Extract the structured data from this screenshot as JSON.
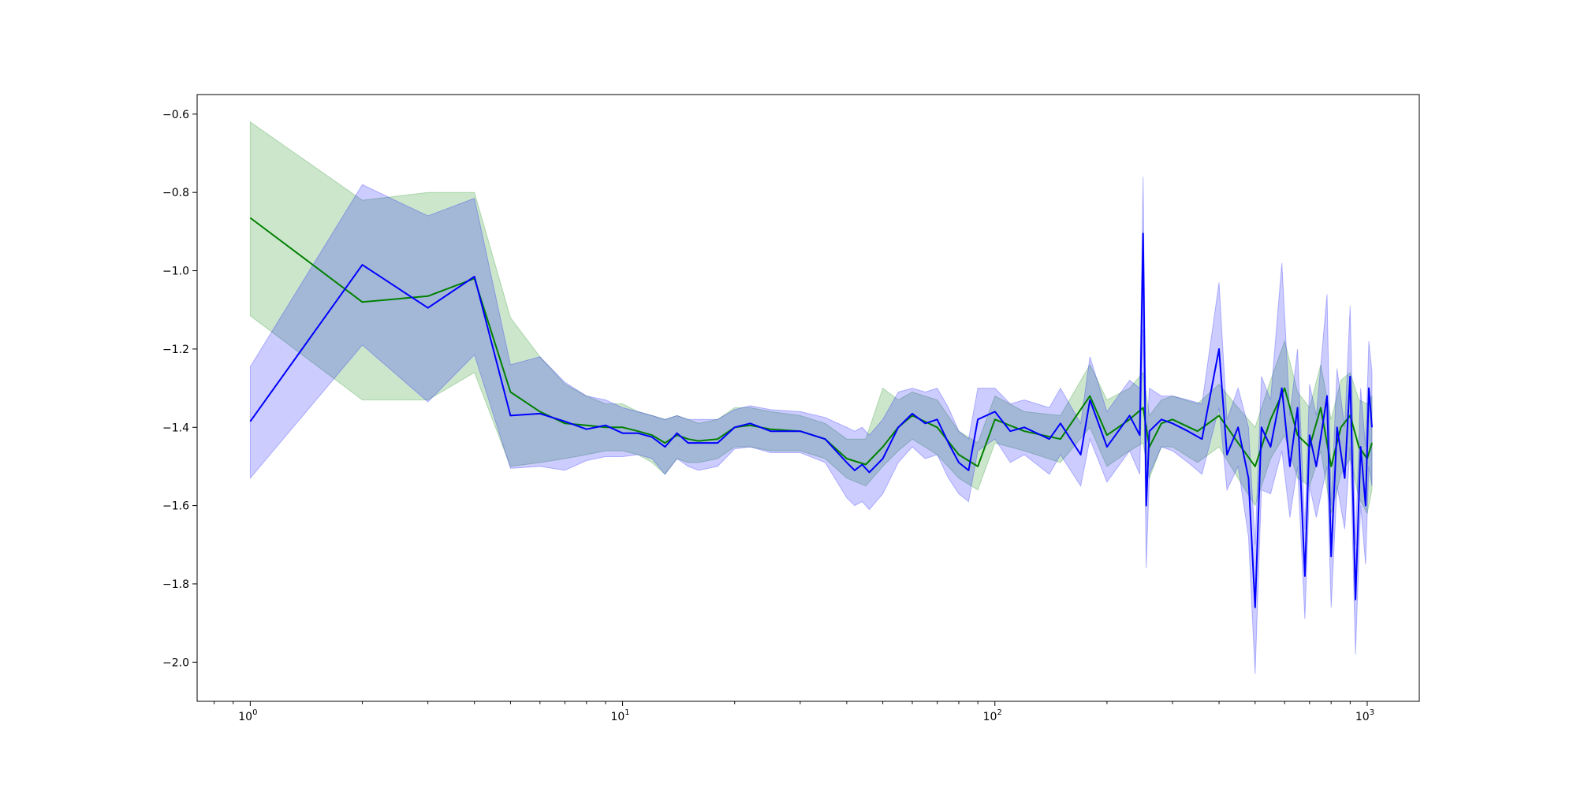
{
  "chart_data": {
    "type": "line",
    "title": "",
    "xlabel": "",
    "ylabel": "",
    "xscale": "log",
    "xlim": [
      0.72,
      1380
    ],
    "ylim": [
      -2.1,
      -0.55
    ],
    "grid": false,
    "legend": "none",
    "x_ticks": [
      {
        "base": "10",
        "exp": "0",
        "value": 1
      },
      {
        "base": "10",
        "exp": "1",
        "value": 10
      },
      {
        "base": "10",
        "exp": "2",
        "value": 100
      },
      {
        "base": "10",
        "exp": "3",
        "value": 1000
      }
    ],
    "y_ticks": [
      {
        "label": "−0.6",
        "value": -0.6
      },
      {
        "label": "−0.8",
        "value": -0.8
      },
      {
        "label": "−1.0",
        "value": -1.0
      },
      {
        "label": "−1.2",
        "value": -1.2
      },
      {
        "label": "−1.4",
        "value": -1.4
      },
      {
        "label": "−1.6",
        "value": -1.6
      },
      {
        "label": "−1.8",
        "value": -1.8
      },
      {
        "label": "−2.0",
        "value": -2.0
      }
    ],
    "series": [
      {
        "color": "#008000",
        "band_color": "#008000",
        "band_opacity": 0.2,
        "x": [
          1,
          2,
          3,
          4,
          5,
          6,
          7,
          8,
          9,
          10,
          11,
          12,
          13,
          14,
          15,
          16,
          18,
          20,
          22,
          25,
          30,
          35,
          40,
          45,
          50,
          55,
          60,
          70,
          80,
          90,
          100,
          120,
          150,
          180,
          200,
          230,
          250,
          260,
          280,
          300,
          350,
          400,
          450,
          500,
          550,
          600,
          650,
          700,
          750,
          800,
          850,
          900,
          950,
          1000,
          1030
        ],
        "y": [
          -0.865,
          -1.08,
          -1.065,
          -1.02,
          -1.31,
          -1.36,
          -1.39,
          -1.395,
          -1.4,
          -1.4,
          -1.41,
          -1.42,
          -1.44,
          -1.42,
          -1.43,
          -1.435,
          -1.43,
          -1.4,
          -1.395,
          -1.405,
          -1.41,
          -1.43,
          -1.48,
          -1.495,
          -1.45,
          -1.4,
          -1.37,
          -1.4,
          -1.47,
          -1.5,
          -1.38,
          -1.41,
          -1.43,
          -1.32,
          -1.42,
          -1.38,
          -1.35,
          -1.45,
          -1.39,
          -1.38,
          -1.41,
          -1.37,
          -1.44,
          -1.5,
          -1.38,
          -1.3,
          -1.42,
          -1.45,
          -1.35,
          -1.5,
          -1.4,
          -1.37,
          -1.45,
          -1.48,
          -1.44
        ],
        "lower": [
          -1.115,
          -1.33,
          -1.33,
          -1.26,
          -1.5,
          -1.49,
          -1.48,
          -1.47,
          -1.46,
          -1.46,
          -1.47,
          -1.49,
          -1.52,
          -1.48,
          -1.49,
          -1.49,
          -1.48,
          -1.45,
          -1.45,
          -1.46,
          -1.46,
          -1.48,
          -1.53,
          -1.55,
          -1.5,
          -1.46,
          -1.43,
          -1.47,
          -1.53,
          -1.56,
          -1.44,
          -1.46,
          -1.49,
          -1.4,
          -1.5,
          -1.46,
          -1.44,
          -1.53,
          -1.45,
          -1.45,
          -1.49,
          -1.45,
          -1.53,
          -1.6,
          -1.48,
          -1.42,
          -1.53,
          -1.55,
          -1.46,
          -1.62,
          -1.52,
          -1.48,
          -1.58,
          -1.62,
          -1.56
        ],
        "upper": [
          -0.62,
          -0.82,
          -0.8,
          -0.8,
          -1.12,
          -1.22,
          -1.29,
          -1.32,
          -1.34,
          -1.34,
          -1.36,
          -1.37,
          -1.38,
          -1.37,
          -1.38,
          -1.39,
          -1.38,
          -1.35,
          -1.35,
          -1.36,
          -1.37,
          -1.39,
          -1.43,
          -1.43,
          -1.3,
          -1.33,
          -1.31,
          -1.33,
          -1.41,
          -1.44,
          -1.32,
          -1.36,
          -1.37,
          -1.24,
          -1.33,
          -1.3,
          -1.26,
          -1.37,
          -1.33,
          -1.32,
          -1.34,
          -1.29,
          -1.35,
          -1.4,
          -1.28,
          -1.18,
          -1.31,
          -1.35,
          -1.24,
          -1.38,
          -1.28,
          -1.26,
          -1.33,
          -1.34,
          -1.32
        ]
      },
      {
        "color": "#0000ff",
        "band_color": "#0000ff",
        "band_opacity": 0.2,
        "x": [
          1,
          2,
          3,
          4,
          5,
          6,
          7,
          8,
          9,
          10,
          11,
          12,
          13,
          14,
          15,
          16,
          18,
          20,
          22,
          25,
          30,
          35,
          40,
          42,
          44,
          46,
          50,
          55,
          60,
          65,
          70,
          75,
          80,
          85,
          90,
          100,
          110,
          120,
          140,
          150,
          170,
          180,
          200,
          230,
          245,
          250,
          255,
          260,
          280,
          300,
          330,
          360,
          400,
          420,
          450,
          480,
          500,
          520,
          550,
          590,
          620,
          650,
          680,
          700,
          730,
          780,
          800,
          830,
          870,
          900,
          930,
          960,
          990,
          1010,
          1030
        ],
        "y": [
          -1.385,
          -0.985,
          -1.095,
          -1.015,
          -1.37,
          -1.365,
          -1.385,
          -1.405,
          -1.395,
          -1.415,
          -1.415,
          -1.425,
          -1.45,
          -1.415,
          -1.44,
          -1.44,
          -1.44,
          -1.4,
          -1.39,
          -1.41,
          -1.41,
          -1.43,
          -1.49,
          -1.51,
          -1.495,
          -1.515,
          -1.48,
          -1.4,
          -1.365,
          -1.39,
          -1.38,
          -1.44,
          -1.49,
          -1.51,
          -1.38,
          -1.36,
          -1.41,
          -1.4,
          -1.43,
          -1.39,
          -1.47,
          -1.33,
          -1.45,
          -1.37,
          -1.42,
          -0.905,
          -1.6,
          -1.41,
          -1.38,
          -1.39,
          -1.41,
          -1.43,
          -1.2,
          -1.47,
          -1.4,
          -1.53,
          -1.86,
          -1.4,
          -1.45,
          -1.3,
          -1.5,
          -1.35,
          -1.78,
          -1.42,
          -1.5,
          -1.32,
          -1.73,
          -1.4,
          -1.53,
          -1.27,
          -1.84,
          -1.45,
          -1.6,
          -1.3,
          -1.4
        ],
        "lower": [
          -1.53,
          -1.19,
          -1.335,
          -1.215,
          -1.505,
          -1.5,
          -1.51,
          -1.485,
          -1.475,
          -1.475,
          -1.47,
          -1.48,
          -1.52,
          -1.48,
          -1.5,
          -1.51,
          -1.5,
          -1.455,
          -1.45,
          -1.465,
          -1.465,
          -1.49,
          -1.58,
          -1.6,
          -1.59,
          -1.61,
          -1.57,
          -1.49,
          -1.45,
          -1.48,
          -1.47,
          -1.53,
          -1.57,
          -1.59,
          -1.46,
          -1.43,
          -1.49,
          -1.47,
          -1.52,
          -1.47,
          -1.55,
          -1.43,
          -1.54,
          -1.46,
          -1.52,
          -1.15,
          -1.76,
          -1.52,
          -1.45,
          -1.46,
          -1.49,
          -1.52,
          -1.35,
          -1.56,
          -1.5,
          -1.68,
          -2.03,
          -1.56,
          -1.57,
          -1.46,
          -1.63,
          -1.5,
          -1.89,
          -1.55,
          -1.63,
          -1.5,
          -1.86,
          -1.55,
          -1.66,
          -1.45,
          -1.98,
          -1.6,
          -1.75,
          -1.5,
          -1.55
        ],
        "upper": [
          -1.245,
          -0.78,
          -0.86,
          -0.815,
          -1.24,
          -1.22,
          -1.285,
          -1.32,
          -1.33,
          -1.35,
          -1.36,
          -1.37,
          -1.38,
          -1.37,
          -1.38,
          -1.38,
          -1.38,
          -1.355,
          -1.345,
          -1.355,
          -1.36,
          -1.375,
          -1.4,
          -1.41,
          -1.4,
          -1.42,
          -1.38,
          -1.31,
          -1.3,
          -1.31,
          -1.3,
          -1.35,
          -1.41,
          -1.43,
          -1.3,
          -1.3,
          -1.34,
          -1.33,
          -1.35,
          -1.3,
          -1.39,
          -1.22,
          -1.36,
          -1.28,
          -1.3,
          -0.76,
          -1.44,
          -1.3,
          -1.32,
          -1.32,
          -1.33,
          -1.34,
          -1.03,
          -1.38,
          -1.3,
          -1.4,
          -1.7,
          -1.27,
          -1.33,
          -0.98,
          -1.37,
          -1.2,
          -1.66,
          -1.29,
          -1.37,
          -1.06,
          -1.6,
          -1.25,
          -1.4,
          -1.09,
          -1.7,
          -1.3,
          -1.45,
          -1.18,
          -1.26
        ]
      }
    ]
  }
}
